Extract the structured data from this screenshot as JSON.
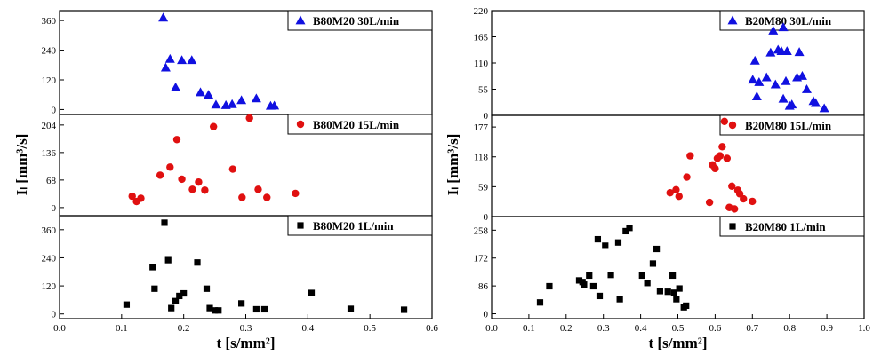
{
  "chart_data": [
    {
      "type": "scatter",
      "x_axis": {
        "label": "t [s/mm²]",
        "range": [
          0.0,
          0.6
        ],
        "ticks": [
          "0.0",
          "0.1",
          "0.2",
          "0.3",
          "0.4",
          "0.5",
          "0.6"
        ]
      },
      "y_axis_label": "Iₗ [mm³/s]",
      "panels": [
        {
          "series": {
            "name": "B80M20 30L/min",
            "marker": "triangle",
            "color": "#1010e0"
          },
          "ylim": [
            -20,
            400
          ],
          "yticks": [
            "0",
            "120",
            "240",
            "360"
          ],
          "points": [
            [
              0.167,
              372
            ],
            [
              0.171,
              170
            ],
            [
              0.178,
              205
            ],
            [
              0.187,
              90
            ],
            [
              0.197,
              200
            ],
            [
              0.213,
              200
            ],
            [
              0.227,
              70
            ],
            [
              0.24,
              60
            ],
            [
              0.252,
              20
            ],
            [
              0.268,
              18
            ],
            [
              0.278,
              22
            ],
            [
              0.293,
              38
            ],
            [
              0.317,
              45
            ],
            [
              0.34,
              15
            ],
            [
              0.346,
              16
            ]
          ]
        },
        {
          "series": {
            "name": "B80M20 15L/min",
            "marker": "circle",
            "color": "#e01010"
          },
          "ylim": [
            -20,
            230
          ],
          "yticks": [
            "0",
            "68",
            "136",
            "204"
          ],
          "points": [
            [
              0.117,
              28
            ],
            [
              0.124,
              15
            ],
            [
              0.131,
              23
            ],
            [
              0.162,
              80
            ],
            [
              0.178,
              100
            ],
            [
              0.189,
              168
            ],
            [
              0.197,
              70
            ],
            [
              0.214,
              45
            ],
            [
              0.224,
              63
            ],
            [
              0.234,
              43
            ],
            [
              0.248,
              200
            ],
            [
              0.279,
              95
            ],
            [
              0.294,
              25
            ],
            [
              0.306,
              221
            ],
            [
              0.32,
              45
            ],
            [
              0.334,
              25
            ],
            [
              0.38,
              35
            ]
          ]
        },
        {
          "series": {
            "name": "B80M20 1L/min",
            "marker": "square",
            "color": "#000000"
          },
          "ylim": [
            -20,
            420
          ],
          "yticks": [
            "0",
            "120",
            "240",
            "360"
          ],
          "points": [
            [
              0.108,
              40
            ],
            [
              0.15,
              200
            ],
            [
              0.153,
              108
            ],
            [
              0.169,
              390
            ],
            [
              0.175,
              230
            ],
            [
              0.18,
              25
            ],
            [
              0.187,
              55
            ],
            [
              0.193,
              77
            ],
            [
              0.2,
              88
            ],
            [
              0.222,
              220
            ],
            [
              0.237,
              108
            ],
            [
              0.242,
              25
            ],
            [
              0.25,
              15
            ],
            [
              0.256,
              15
            ],
            [
              0.293,
              45
            ],
            [
              0.317,
              20
            ],
            [
              0.33,
              20
            ],
            [
              0.406,
              90
            ],
            [
              0.469,
              22
            ],
            [
              0.555,
              18
            ]
          ]
        }
      ]
    },
    {
      "type": "scatter",
      "x_axis": {
        "label": "t [s/mm²]",
        "range": [
          0.0,
          1.0
        ],
        "ticks": [
          "0.0",
          "0.1",
          "0.2",
          "0.3",
          "0.4",
          "0.5",
          "0.6",
          "0.7",
          "0.8",
          "0.9",
          "1.0"
        ]
      },
      "y_axis_label": "Iₗ [mm³/s]",
      "panels": [
        {
          "series": {
            "name": "B20M80 30L/min",
            "marker": "triangle",
            "color": "#1010e0"
          },
          "ylim": [
            0,
            220
          ],
          "yticks": [
            "0",
            "55",
            "110",
            "165",
            "220"
          ],
          "points": [
            [
              0.701,
              75
            ],
            [
              0.707,
              115
            ],
            [
              0.712,
              40
            ],
            [
              0.718,
              70
            ],
            [
              0.738,
              80
            ],
            [
              0.749,
              132
            ],
            [
              0.756,
              178
            ],
            [
              0.762,
              65
            ],
            [
              0.769,
              138
            ],
            [
              0.778,
              135
            ],
            [
              0.783,
              185
            ],
            [
              0.783,
              35
            ],
            [
              0.79,
              72
            ],
            [
              0.793,
              135
            ],
            [
              0.8,
              20
            ],
            [
              0.806,
              23
            ],
            [
              0.82,
              80
            ],
            [
              0.826,
              133
            ],
            [
              0.834,
              83
            ],
            [
              0.846,
              55
            ],
            [
              0.864,
              30
            ],
            [
              0.87,
              26
            ],
            [
              0.893,
              15
            ]
          ]
        },
        {
          "series": {
            "name": "B20M80 15L/min",
            "marker": "circle",
            "color": "#e01010"
          },
          "ylim": [
            0,
            200
          ],
          "yticks": [
            "0",
            "59",
            "118",
            "177"
          ],
          "points": [
            [
              0.479,
              47
            ],
            [
              0.495,
              53
            ],
            [
              0.503,
              40
            ],
            [
              0.524,
              78
            ],
            [
              0.533,
              120
            ],
            [
              0.585,
              28
            ],
            [
              0.593,
              102
            ],
            [
              0.6,
              95
            ],
            [
              0.606,
              115
            ],
            [
              0.613,
              120
            ],
            [
              0.619,
              138
            ],
            [
              0.625,
              188
            ],
            [
              0.632,
              115
            ],
            [
              0.638,
              18
            ],
            [
              0.645,
              60
            ],
            [
              0.652,
              15
            ],
            [
              0.661,
              52
            ],
            [
              0.666,
              45
            ],
            [
              0.676,
              35
            ],
            [
              0.7,
              30
            ]
          ]
        },
        {
          "series": {
            "name": "B20M80 1L/min",
            "marker": "square",
            "color": "#000000"
          },
          "ylim": [
            -15,
            300
          ],
          "yticks": [
            "0",
            "86",
            "172",
            "258"
          ],
          "points": [
            [
              0.13,
              35
            ],
            [
              0.155,
              85
            ],
            [
              0.235,
              103
            ],
            [
              0.244,
              98
            ],
            [
              0.248,
              90
            ],
            [
              0.262,
              118
            ],
            [
              0.273,
              85
            ],
            [
              0.285,
              230
            ],
            [
              0.29,
              55
            ],
            [
              0.305,
              210
            ],
            [
              0.32,
              120
            ],
            [
              0.34,
              220
            ],
            [
              0.344,
              45
            ],
            [
              0.36,
              255
            ],
            [
              0.37,
              265
            ],
            [
              0.404,
              118
            ],
            [
              0.418,
              95
            ],
            [
              0.433,
              155
            ],
            [
              0.443,
              200
            ],
            [
              0.452,
              70
            ],
            [
              0.473,
              68
            ],
            [
              0.486,
              118
            ],
            [
              0.49,
              65
            ],
            [
              0.496,
              45
            ],
            [
              0.504,
              78
            ],
            [
              0.516,
              20
            ],
            [
              0.522,
              25
            ]
          ]
        }
      ]
    }
  ]
}
